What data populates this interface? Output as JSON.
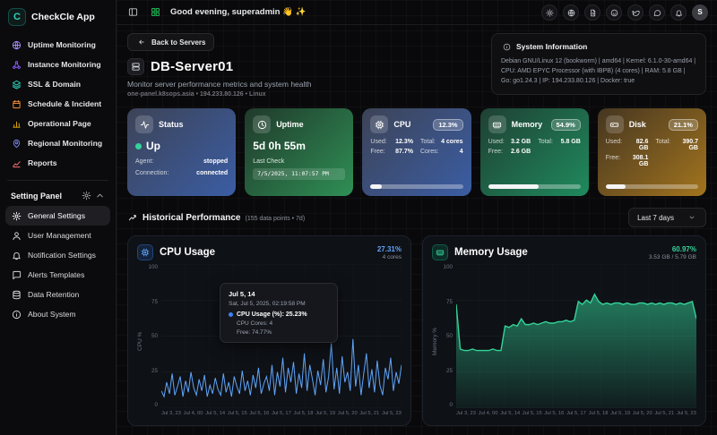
{
  "app": {
    "name": "CheckCle App",
    "logo_letter": "C"
  },
  "topbar": {
    "greeting": "Good evening, superadmin 👋 ✨",
    "avatar_letter": "S",
    "icons": [
      {
        "name": "theme-toggle",
        "icon": "sun"
      },
      {
        "name": "language-globe",
        "icon": "globe"
      },
      {
        "name": "docs",
        "icon": "doc"
      },
      {
        "name": "github",
        "icon": "github"
      },
      {
        "name": "twitter",
        "icon": "bird"
      },
      {
        "name": "feedback-chat",
        "icon": "chat"
      },
      {
        "name": "notifications-bell",
        "icon": "bell"
      }
    ]
  },
  "sidebar": {
    "menu": [
      {
        "label": "Uptime Monitoring",
        "icon": "globe",
        "color": "#a78bfa"
      },
      {
        "label": "Instance Monitoring",
        "icon": "nodes",
        "color": "#8b5cf6"
      },
      {
        "label": "SSL & Domain",
        "icon": "layers",
        "color": "#2dd4bf"
      },
      {
        "label": "Schedule & Incident",
        "icon": "calendar",
        "color": "#fb923c"
      },
      {
        "label": "Operational Page",
        "icon": "barchart",
        "color": "#eab308"
      },
      {
        "label": "Regional Monitoring",
        "icon": "mappin",
        "color": "#818cf8"
      },
      {
        "label": "Reports",
        "icon": "linechart",
        "color": "#f87171"
      }
    ],
    "settings_title": "Setting Panel",
    "settings": [
      {
        "label": "General Settings",
        "icon": "gear",
        "active": true
      },
      {
        "label": "User Management",
        "icon": "user",
        "active": false
      },
      {
        "label": "Notification Settings",
        "icon": "bell",
        "active": false
      },
      {
        "label": "Alerts Templates",
        "icon": "template",
        "active": false
      },
      {
        "label": "Data Retention",
        "icon": "database",
        "active": false
      },
      {
        "label": "About System",
        "icon": "info",
        "active": false
      }
    ]
  },
  "page": {
    "back_button": "Back to Servers",
    "title": "DB-Server01",
    "subtitle": "Monitor server performance metrics and system health",
    "meta": "one-panel.k8sops.asia • 194.233.80.126 • Linux",
    "system_info": {
      "title": "System Information",
      "details": "Debian GNU/Linux 12 (bookworm) | amd64 | Kernel: 6.1.0-30-amd64 | CPU: AMD EPYC Processor (with IBPB) (4 cores) | RAM: 5.8 GB | Go: go1.24.3 | IP: 194.233.80.126 | Docker: true"
    }
  },
  "cards": {
    "status": {
      "title": "Status",
      "value": "Up",
      "rows": [
        {
          "l": "Agent:",
          "v": "stopped"
        },
        {
          "l": "Connection:",
          "v": "connected"
        }
      ]
    },
    "uptime": {
      "title": "Uptime",
      "value": "5d 0h 55m",
      "last_check_label": "Last Check",
      "last_check": "7/5/2025, 11:07:57 PM"
    },
    "cpu": {
      "title": "CPU",
      "badge": "12.3%",
      "progress": 12.3,
      "rows": [
        {
          "l": "Used:",
          "v": "12.3%"
        },
        {
          "l": "Total:",
          "v": "4 cores"
        },
        {
          "l": "Free:",
          "v": "87.7%"
        },
        {
          "l": "Cores:",
          "v": "4"
        }
      ]
    },
    "memory": {
      "title": "Memory",
      "badge": "54.9%",
      "progress": 54.9,
      "rows": [
        {
          "l": "Used:",
          "v": "3.2 GB"
        },
        {
          "l": "Total:",
          "v": "5.8 GB"
        },
        {
          "l": "Free:",
          "v": "2.6 GB"
        }
      ]
    },
    "disk": {
      "title": "Disk",
      "badge": "21.1%",
      "progress": 21.1,
      "rows": [
        {
          "l": "Used:",
          "v": "82.6 GB"
        },
        {
          "l": "Total:",
          "v": "390.7 GB"
        },
        {
          "l": "Free:",
          "v": "308.1 GB"
        }
      ]
    }
  },
  "history": {
    "title": "Historical Performance",
    "meta": "(155 data points • 7d)",
    "range": "Last 7 days"
  },
  "chart_data": [
    {
      "id": "cpu",
      "type": "line",
      "title": "CPU Usage",
      "color": "#60a5fa",
      "stat_value": "27.31%",
      "stat_sub": "4 cores",
      "ylabel": "CPU %",
      "ylim": [
        0,
        100
      ],
      "yticks": [
        100,
        75,
        50,
        25,
        0
      ],
      "grid": true,
      "x_labels": [
        "Jul 3, 23",
        "Jul 4, 00",
        "Jul 5, 14",
        "Jul 5, 15",
        "Jul 5, 16",
        "Jul 5, 17",
        "Jul 5, 18",
        "Jul 5, 19",
        "Jul 5, 20",
        "Jul 5, 21",
        "Jul 5, 23"
      ],
      "values": [
        12,
        8,
        18,
        10,
        24,
        9,
        15,
        22,
        8,
        19,
        11,
        25,
        14,
        9,
        20,
        12,
        23,
        8,
        16,
        10,
        21,
        13,
        9,
        24,
        11,
        18,
        8,
        22,
        15,
        10,
        26,
        12,
        19,
        9,
        23,
        14,
        28,
        10,
        17,
        22,
        12,
        30,
        9,
        25,
        15,
        35,
        11,
        28,
        18,
        32,
        10,
        24,
        14,
        38,
        12,
        30,
        20,
        9,
        26,
        16,
        34,
        11,
        22,
        45,
        13,
        28,
        10,
        36,
        18,
        25,
        12,
        48,
        15,
        30,
        9,
        24,
        38,
        14,
        27,
        11,
        33,
        16,
        9,
        28,
        20,
        35,
        12,
        25,
        17,
        30
      ],
      "tooltip": {
        "title": "Jul 5, 14",
        "date": "Sat, Jul 5, 2025, 02:19:58 PM",
        "series": "CPU Usage (%): 25.23%",
        "line2": "CPU Cores: 4",
        "line3": "Free: 74.77%"
      }
    },
    {
      "id": "memory",
      "type": "area",
      "title": "Memory Usage",
      "color": "#34d399",
      "stat_value": "60.97%",
      "stat_sub": "3.53 GB / 5.79 GB",
      "ylabel": "Memory %",
      "ylim": [
        0,
        100
      ],
      "yticks": [
        100,
        75,
        50,
        25,
        0
      ],
      "grid": true,
      "x_labels": [
        "Jul 3, 23",
        "Jul 4, 00",
        "Jul 5, 14",
        "Jul 5, 15",
        "Jul 5, 16",
        "Jul 5, 17",
        "Jul 5, 18",
        "Jul 5, 19",
        "Jul 5, 20",
        "Jul 5, 21",
        "Jul 5, 23"
      ],
      "values": [
        72,
        41,
        40,
        40,
        41,
        40,
        40,
        40,
        40,
        41,
        40,
        40,
        57,
        56,
        58,
        57,
        62,
        58,
        58,
        59,
        58,
        59,
        60,
        59,
        59,
        60,
        60,
        61,
        60,
        61,
        74,
        72,
        75,
        73,
        79,
        74,
        72,
        73,
        72,
        73,
        73,
        72,
        73,
        72,
        72,
        73,
        73,
        72,
        73,
        72,
        73,
        72,
        73,
        73,
        72,
        73,
        72,
        73,
        74,
        62
      ]
    }
  ]
}
